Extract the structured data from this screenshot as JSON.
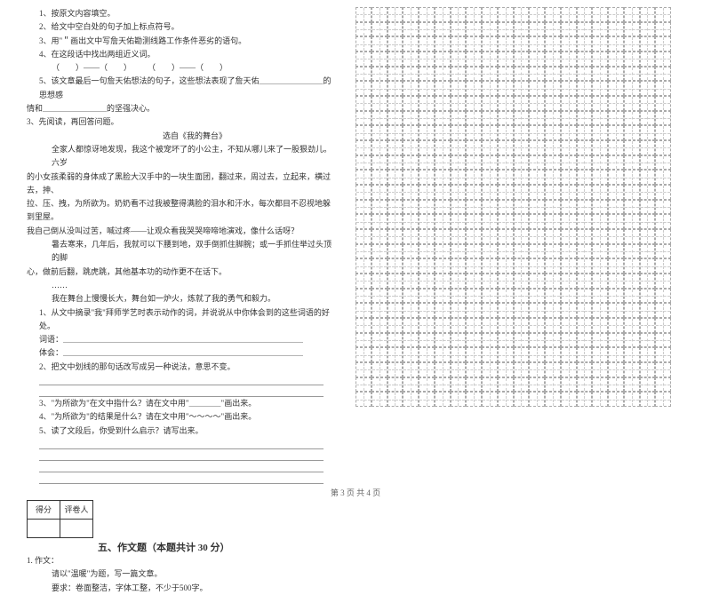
{
  "left": {
    "items": [
      {
        "cls": "line indent1",
        "text": "1、按原文内容填空。"
      },
      {
        "cls": "line indent1",
        "text": "2、给文中空白处的句子加上标点符号。"
      },
      {
        "cls": "line indent1",
        "text": "3、用\"＂画出文中写詹天佑勘测线路工作条件恶劣的语句。"
      },
      {
        "cls": "line indent1",
        "text": "4、在这段话中找出两组近义词。"
      },
      {
        "cls": "line indent2",
        "text": "（　　）——（　　）　　　（　　）——（　　）"
      },
      {
        "cls": "line indent1",
        "text": "5、该文章最后一句詹天佑想法的句子，这些想法表现了詹天佑＿＿＿＿＿＿＿＿的思想感"
      },
      {
        "cls": "line",
        "text": "情和＿＿＿＿＿＿＿＿的坚强决心。"
      },
      {
        "cls": "line",
        "text": "3、先阅读，再回答问题。"
      },
      {
        "cls": "line",
        "text": "　　　　　　　　　　　　　　　　　选自《我的舞台》"
      },
      {
        "cls": "line indent2",
        "text": "全家人都惊讶地发现，我这个被宠坏了的小公主，不知从哪儿来了一股狠劲儿。六岁"
      },
      {
        "cls": "line",
        "text": "的小女孩柔弱的身体成了黑脸大汉手中的一块生面团，翻过来，周过去，立起来，横过去，抻、"
      },
      {
        "cls": "line",
        "text": "拉、压、拽，为所欲为。奶奶看不过我被整得满脸的泪水和汗水，每次都目不忍视地躲到里屋。"
      },
      {
        "cls": "line",
        "text": "我自己倒从没叫过苦，喊过疼——让观众看我哭哭啼啼地演戏，像什么话呀？"
      },
      {
        "cls": "line indent2",
        "text": "暑去寒来，几年后，我就可以下腰到地，双手倒抓住脚腕；或一手抓住举过头顶的脚"
      },
      {
        "cls": "line",
        "text": "心，做前后翻，跳虎跳，其他基本功的动作更不在话下。"
      },
      {
        "cls": "line indent2",
        "text": "……"
      },
      {
        "cls": "line indent2",
        "text": "我在舞台上慢慢长大，舞台如一炉火，炼就了我的勇气和毅力。"
      },
      {
        "cls": "line indent1",
        "text": "1、从文中摘录\"我\"拜师学艺时表示动作的词，并说说从中你体会到的这些词语的好处。"
      },
      {
        "cls": "line indent1",
        "text": "词语：＿＿＿＿＿＿＿＿＿＿＿＿＿＿＿＿＿＿＿＿＿＿＿＿＿＿＿＿＿＿"
      },
      {
        "cls": "line indent1",
        "text": "体会：＿＿＿＿＿＿＿＿＿＿＿＿＿＿＿＿＿＿＿＿＿＿＿＿＿＿＿＿＿＿"
      },
      {
        "cls": "line indent1",
        "text": "2、把文中划线的那句话改写成另一种说法，意思不变。"
      },
      {
        "cls": "blank-line",
        "text": ""
      },
      {
        "cls": "blank-line",
        "text": ""
      },
      {
        "cls": "line indent1",
        "text": "3、\"为所欲为\"在文中指什么？请在文中用\"＿＿＿＿\"画出来。"
      },
      {
        "cls": "line indent1",
        "text": "4、\"为所欲为\"的结果是什么？请在文中用\"～～～～\"画出来。"
      },
      {
        "cls": "line indent1",
        "text": "5、读了文段后，你受到什么启示？请写出来。"
      },
      {
        "cls": "blank-line",
        "text": ""
      },
      {
        "cls": "blank-line",
        "text": ""
      },
      {
        "cls": "blank-line",
        "text": ""
      },
      {
        "cls": "blank-line",
        "text": ""
      }
    ],
    "score_headers": [
      "得分",
      "评卷人"
    ],
    "section_title": "五、作文题（本题共计 30 分）",
    "essay": [
      {
        "cls": "line",
        "text": "1. 作文："
      },
      {
        "cls": "line indent2",
        "text": "请以\"温暖\"为题，写一篇文章。"
      },
      {
        "cls": "line indent2",
        "text": "要求：卷面整洁，字体工整，不少于500字。"
      }
    ]
  },
  "footer": "第 3 页 共 4 页",
  "grid": {
    "boxes": 3,
    "rows": 9,
    "cols": 20
  }
}
